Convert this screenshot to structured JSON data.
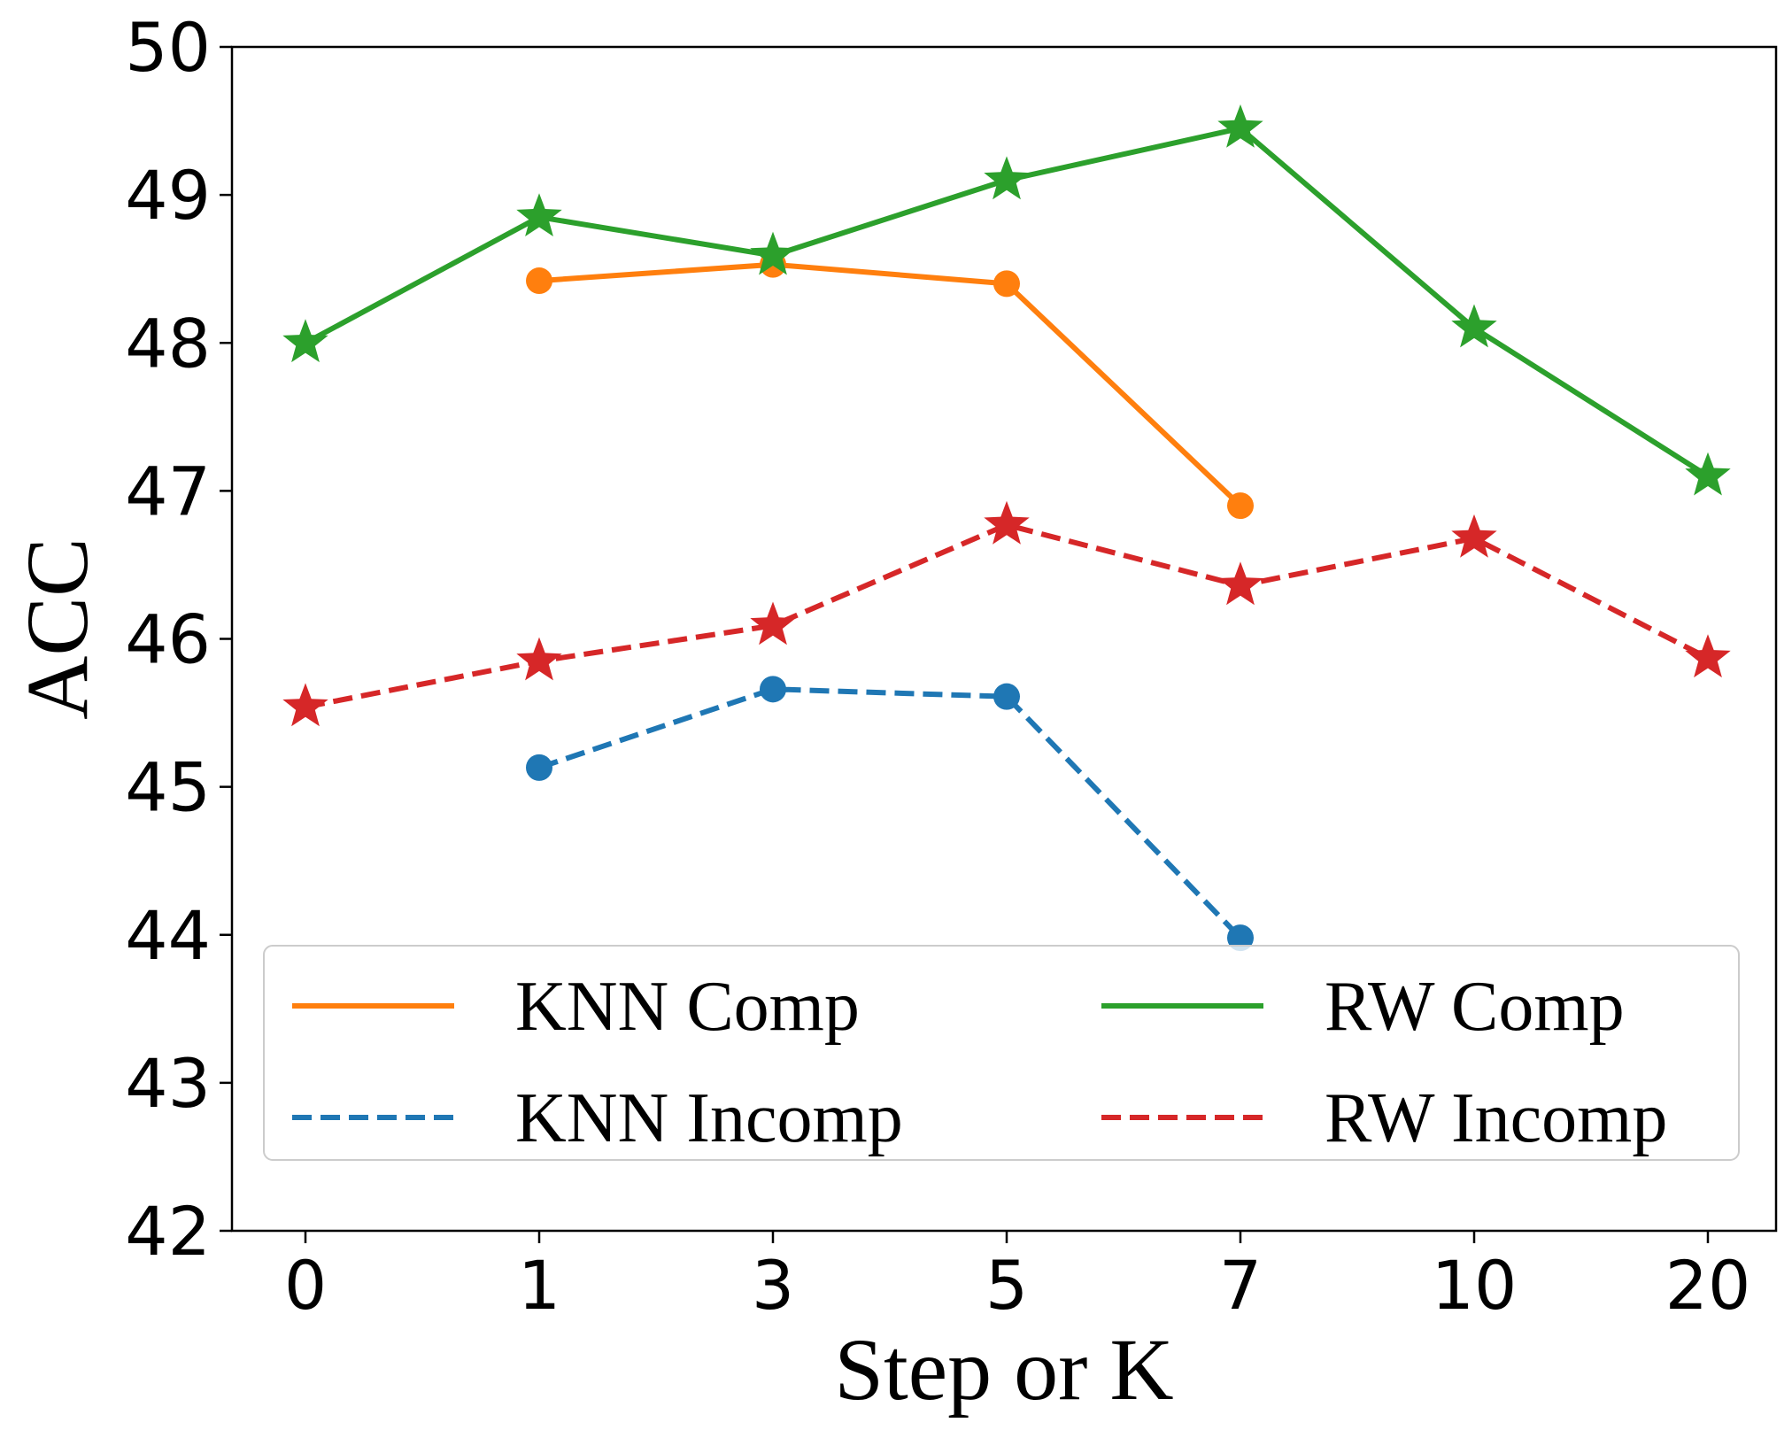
{
  "chart_data": {
    "type": "line",
    "title": "",
    "xlabel": "Step or K",
    "ylabel": "ACC",
    "categories": [
      "0",
      "1",
      "3",
      "5",
      "7",
      "10",
      "20"
    ],
    "ylim": [
      42,
      50
    ],
    "yticks": [
      "42",
      "43",
      "44",
      "45",
      "46",
      "47",
      "48",
      "49",
      "50"
    ],
    "grid": false,
    "legend_position": "lower-center",
    "series": [
      {
        "name": "KNN Comp",
        "color": "#ff7f0e",
        "style": "solid",
        "marker": "circle",
        "values": [
          null,
          48.42,
          48.53,
          48.4,
          46.9,
          null,
          null
        ]
      },
      {
        "name": "KNN Incomp",
        "color": "#1f77b4",
        "style": "dashed",
        "marker": "circle",
        "values": [
          null,
          45.13,
          45.66,
          45.61,
          43.98,
          null,
          null
        ]
      },
      {
        "name": "RW Comp",
        "color": "#2ca02c",
        "style": "solid",
        "marker": "star",
        "values": [
          48.0,
          48.85,
          48.59,
          49.1,
          49.45,
          48.1,
          47.1
        ]
      },
      {
        "name": "RW Incomp",
        "color": "#d62728",
        "style": "dashed",
        "marker": "star",
        "values": [
          45.54,
          45.85,
          46.09,
          46.77,
          46.36,
          46.68,
          45.87
        ]
      }
    ]
  }
}
